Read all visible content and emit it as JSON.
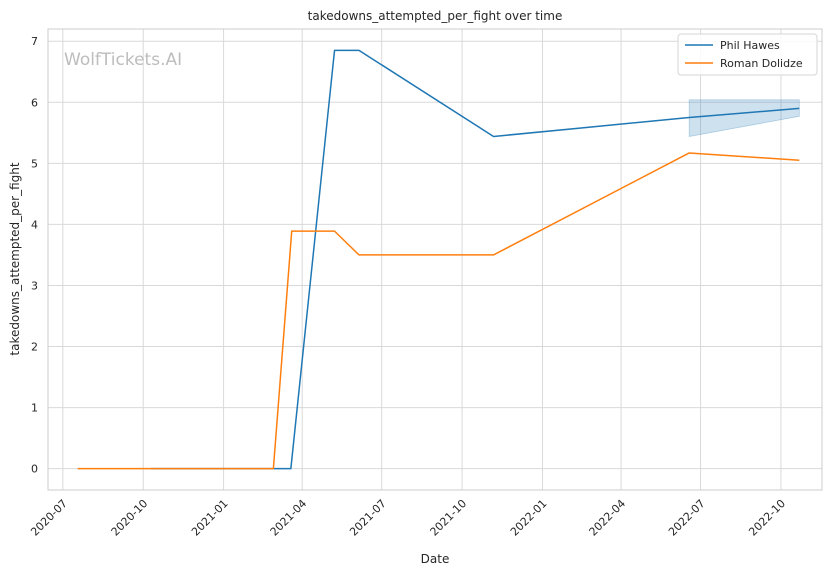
{
  "chart_data": {
    "type": "line",
    "title": "takedowns_attempted_per_fight over time",
    "xlabel": "Date",
    "ylabel": "takedowns_attempted_per_fight",
    "watermark": "WolfTickets.AI",
    "x_axis_type": "date",
    "xlim": [
      "2020-06-14",
      "2022-11-17"
    ],
    "ylim": [
      -0.35,
      7.2
    ],
    "x_ticks": [
      "2020-07-01",
      "2020-10-01",
      "2021-01-01",
      "2021-04-01",
      "2021-07-01",
      "2021-10-01",
      "2022-01-01",
      "2022-04-01",
      "2022-07-01",
      "2022-10-01"
    ],
    "x_tick_labels": [
      "2020-07",
      "2020-10",
      "2021-01",
      "2021-04",
      "2021-07",
      "2021-10",
      "2022-01",
      "2022-04",
      "2022-07",
      "2022-10"
    ],
    "y_ticks": [
      0,
      1,
      2,
      3,
      4,
      5,
      6,
      7
    ],
    "grid": true,
    "legend_position": "top-right",
    "series": [
      {
        "name": "Phil Hawes",
        "color": "#1f77b4",
        "points": [
          {
            "x": "2020-10-10",
            "y": 0
          },
          {
            "x": "2021-03-19",
            "y": 0
          },
          {
            "x": "2021-05-08",
            "y": 6.85
          },
          {
            "x": "2021-06-05",
            "y": 6.85
          },
          {
            "x": "2021-11-06",
            "y": 5.44
          },
          {
            "x": "2022-06-18",
            "y": 5.75
          },
          {
            "x": "2022-10-22",
            "y": 5.9
          }
        ],
        "band": [
          {
            "x": "2022-06-18",
            "low": 5.44,
            "high": 6.04
          },
          {
            "x": "2022-10-22",
            "low": 5.77,
            "high": 6.04
          }
        ]
      },
      {
        "name": "Roman Dolidze",
        "color": "#ff7f0e",
        "points": [
          {
            "x": "2020-07-18",
            "y": 0
          },
          {
            "x": "2021-02-27",
            "y": 0
          },
          {
            "x": "2021-03-20",
            "y": 3.89
          },
          {
            "x": "2021-05-08",
            "y": 3.89
          },
          {
            "x": "2021-06-05",
            "y": 3.5
          },
          {
            "x": "2021-11-06",
            "y": 3.5
          },
          {
            "x": "2022-06-18",
            "y": 5.17
          },
          {
            "x": "2022-10-22",
            "y": 5.05
          }
        ]
      }
    ]
  }
}
